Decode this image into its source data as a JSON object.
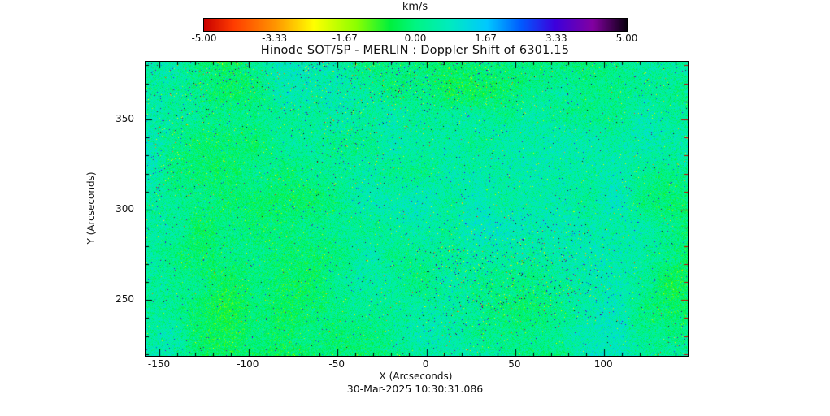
{
  "title": "Hinode SOT/SP - MERLIN : Doppler Shift of 6301.15",
  "timestamp": "30-Mar-2025 10:30:31.086",
  "colorbar": {
    "label": "km/s",
    "tick_labels": [
      "-5.00",
      "-3.33",
      "-1.67",
      "0.00",
      "1.67",
      "3.33",
      "5.00"
    ],
    "range": [
      -5,
      5
    ],
    "stops": [
      {
        "v": -5.0,
        "rgb": [
          200,
          0,
          0
        ]
      },
      {
        "v": -4.3,
        "rgb": [
          255,
          60,
          0
        ]
      },
      {
        "v": -3.3,
        "rgb": [
          255,
          150,
          0
        ]
      },
      {
        "v": -2.4,
        "rgb": [
          255,
          255,
          0
        ]
      },
      {
        "v": -1.4,
        "rgb": [
          140,
          255,
          0
        ]
      },
      {
        "v": -0.6,
        "rgb": [
          0,
          240,
          60
        ]
      },
      {
        "v": 0.0,
        "rgb": [
          0,
          245,
          130
        ]
      },
      {
        "v": 0.8,
        "rgb": [
          0,
          235,
          190
        ]
      },
      {
        "v": 1.7,
        "rgb": [
          0,
          200,
          255
        ]
      },
      {
        "v": 2.5,
        "rgb": [
          0,
          90,
          255
        ]
      },
      {
        "v": 3.3,
        "rgb": [
          60,
          0,
          220
        ]
      },
      {
        "v": 4.2,
        "rgb": [
          130,
          0,
          160
        ]
      },
      {
        "v": 5.0,
        "rgb": [
          10,
          0,
          15
        ]
      }
    ]
  },
  "x_axis": {
    "label": "X (Arcseconds)",
    "tick_values": [
      -150,
      -100,
      -50,
      0,
      50,
      100
    ],
    "minor_step": 10,
    "range": [
      -158,
      147
    ]
  },
  "y_axis": {
    "label": "Y (Arcseconds)",
    "tick_values": [
      250,
      300,
      350
    ],
    "minor_step": 10,
    "range": [
      219,
      382
    ]
  },
  "chart_data": {
    "type": "heatmap",
    "title": "Hinode SOT/SP - MERLIN : Doppler Shift of 6301.15",
    "xlabel": "X (Arcseconds)",
    "ylabel": "Y (Arcseconds)",
    "xlim": [
      -158,
      147
    ],
    "ylim": [
      219,
      382
    ],
    "x_ticks": [
      -150,
      -100,
      -50,
      0,
      50,
      100
    ],
    "y_ticks": [
      250,
      300,
      350
    ],
    "value_label": "km/s",
    "value_range": [
      -5,
      5
    ],
    "colorbar_ticks": [
      -5.0,
      -3.33,
      -1.67,
      0.0,
      1.67,
      3.33,
      5.0
    ],
    "colormap": "reversed-rainbow (red at -5 km/s through orange, yellow, green, cyan, blue, purple to black at +5 km/s)",
    "field_description": "Solar Doppler line-of-sight velocity map; values cluster near 0 to +0.5 km/s (green to cyan-teal mottled patches) with dense salt-and-pepper outliers reaching +/-5 km/s (blue/dark-purple/black speckles and sparser yellow/orange/red speckles), speckle density varying in patches across the field",
    "annotation": "30-Mar-2025 10:30:31.086",
    "render_seed": 20250330
  }
}
